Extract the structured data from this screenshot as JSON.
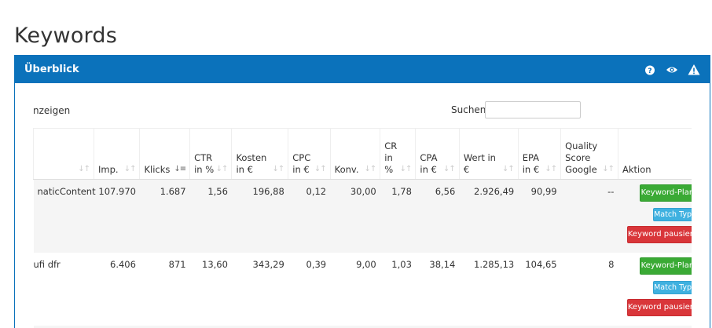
{
  "page": {
    "title": "Keywords"
  },
  "panel": {
    "title": "Überblick",
    "tools": [
      "help-icon",
      "eye-icon",
      "warning-icon"
    ]
  },
  "controls": {
    "show_label": "nzeigen",
    "search_label": "Suchen",
    "search_value": ""
  },
  "table": {
    "headers": [
      "",
      "Imp.",
      "Klicks",
      "CTR in %",
      "Kosten in €",
      "CPC in €",
      "Konv.",
      "CR in %",
      "CPA in €",
      "Wert in €",
      "EPA in €",
      "Quality Score Google",
      "Aktion"
    ],
    "rows": [
      {
        "keyword": "naticContent",
        "imp": "107.970",
        "klicks": "1.687",
        "ctr": "1,56",
        "kosten": "196,88",
        "cpc": "0,12",
        "konv": "30,00",
        "cr": "1,78",
        "cpa": "6,56",
        "wert": "2.926,49",
        "epa": "90,99",
        "qs": "--"
      },
      {
        "keyword": "ufi dfr",
        "imp": "6.406",
        "klicks": "871",
        "ctr": "13,60",
        "kosten": "343,29",
        "cpc": "0,39",
        "konv": "9,00",
        "cr": "1,03",
        "cpa": "38,14",
        "wert": "1.285,13",
        "epa": "104,65",
        "qs": "8"
      }
    ],
    "actions": {
      "planer": "Keyword-Planer",
      "match": "Match Type",
      "pause": "Keyword pausieren"
    }
  },
  "colors": {
    "header_blue": "#0b72bb",
    "planer_green": "#3aaa35",
    "match_blue": "#3fb1e0",
    "pause_red": "#d9363a"
  }
}
